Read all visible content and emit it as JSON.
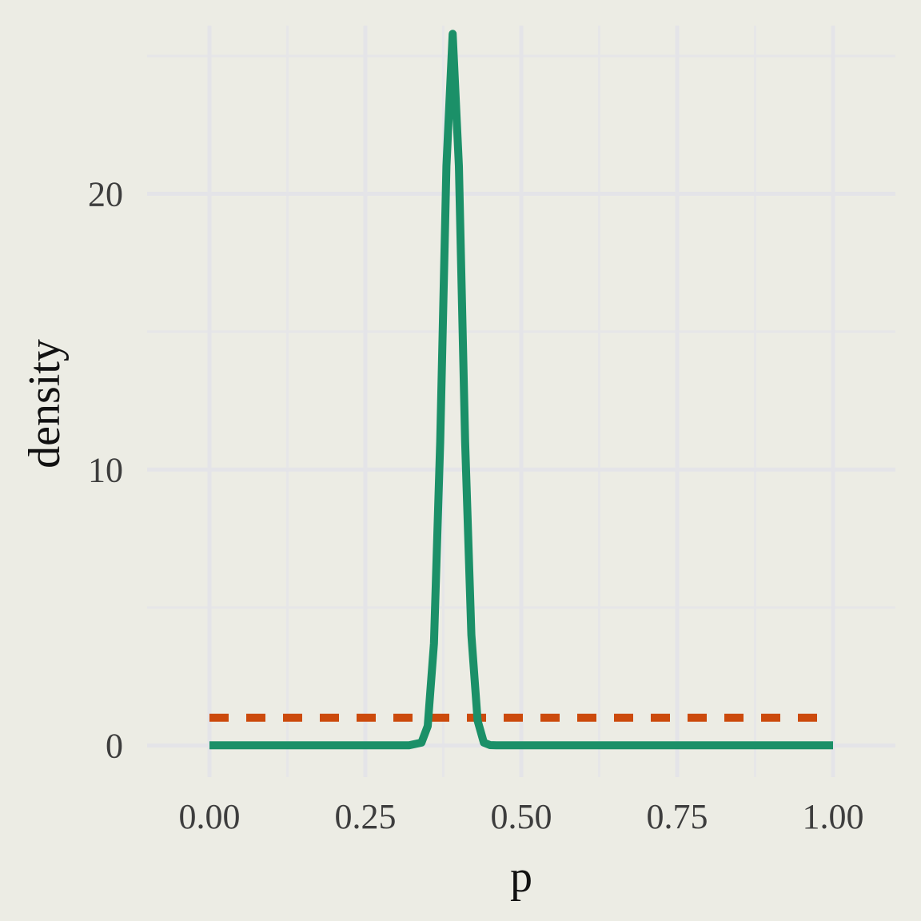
{
  "chart_data": {
    "type": "line",
    "xlabel": "p",
    "ylabel": "density",
    "xlim": [
      -0.1,
      1.1
    ],
    "ylim": [
      -1.15,
      26.1
    ],
    "x_ticks": [
      0,
      0.25,
      0.5,
      0.75,
      1
    ],
    "x_tick_labels": [
      "0.00",
      "0.25",
      "0.50",
      "0.75",
      "1.00"
    ],
    "y_ticks": [
      0,
      10,
      20
    ],
    "y_tick_labels": [
      "0",
      "10",
      "20"
    ],
    "grid": true,
    "legend": "none",
    "series": [
      {
        "color": "#1B9068",
        "style": "solid",
        "x": [
          0.0,
          0.1,
          0.2,
          0.3,
          0.32,
          0.34,
          0.35,
          0.36,
          0.37,
          0.38,
          0.39,
          0.4,
          0.41,
          0.42,
          0.43,
          0.44,
          0.45,
          0.46,
          0.5,
          0.6,
          0.7,
          0.8,
          0.9,
          1.0
        ],
        "y": [
          0,
          0,
          0,
          0,
          0,
          0.1,
          0.7,
          3.7,
          11,
          21,
          25.8,
          21,
          11,
          4,
          0.9,
          0.1,
          0.01,
          0,
          0,
          0,
          0,
          0,
          0,
          0
        ]
      },
      {
        "color": "#CC4A0C",
        "style": "dashed",
        "x": [
          0.0,
          1.0
        ],
        "y": [
          1,
          1
        ]
      }
    ]
  }
}
